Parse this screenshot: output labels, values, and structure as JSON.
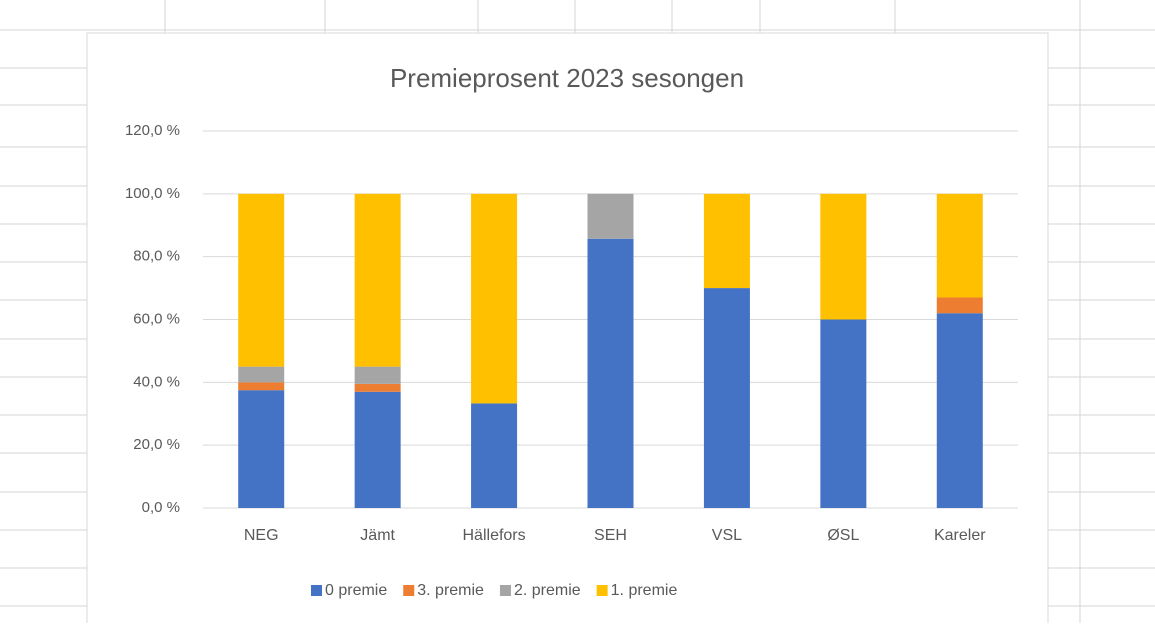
{
  "chart_data": {
    "type": "stacked_bar",
    "title": "Premieprosent 2023 sesongen",
    "categories": [
      "NEG",
      "Jämt",
      "Hällefors",
      "SEH",
      "VSL",
      "ØSL",
      "Kareler"
    ],
    "series": [
      {
        "name": "0 premie",
        "color": "#4472c4",
        "values": [
          37.5,
          37,
          33.3,
          85.7,
          70,
          60,
          62
        ]
      },
      {
        "name": "3. premie",
        "color": "#ed7d31",
        "values": [
          2.5,
          2.5,
          0,
          0,
          0,
          0,
          5
        ]
      },
      {
        "name": "2. premie",
        "color": "#a5a5a5",
        "values": [
          5,
          5.5,
          0,
          14.3,
          0,
          0,
          0
        ]
      },
      {
        "name": "1. premie",
        "color": "#ffc000",
        "values": [
          55,
          55,
          66.7,
          0,
          30,
          40,
          33
        ]
      }
    ],
    "ylim": [
      0,
      120
    ],
    "yticks": [
      {
        "value": 0,
        "label": "0,0 %"
      },
      {
        "value": 20,
        "label": "20,0 %"
      },
      {
        "value": 40,
        "label": "40,0 %"
      },
      {
        "value": 60,
        "label": "60,0 %"
      },
      {
        "value": 80,
        "label": "80,0 %"
      },
      {
        "value": 100,
        "label": "100,0 %"
      },
      {
        "value": 120,
        "label": "120,0 %"
      }
    ],
    "grid": true,
    "legend": "bottom"
  }
}
